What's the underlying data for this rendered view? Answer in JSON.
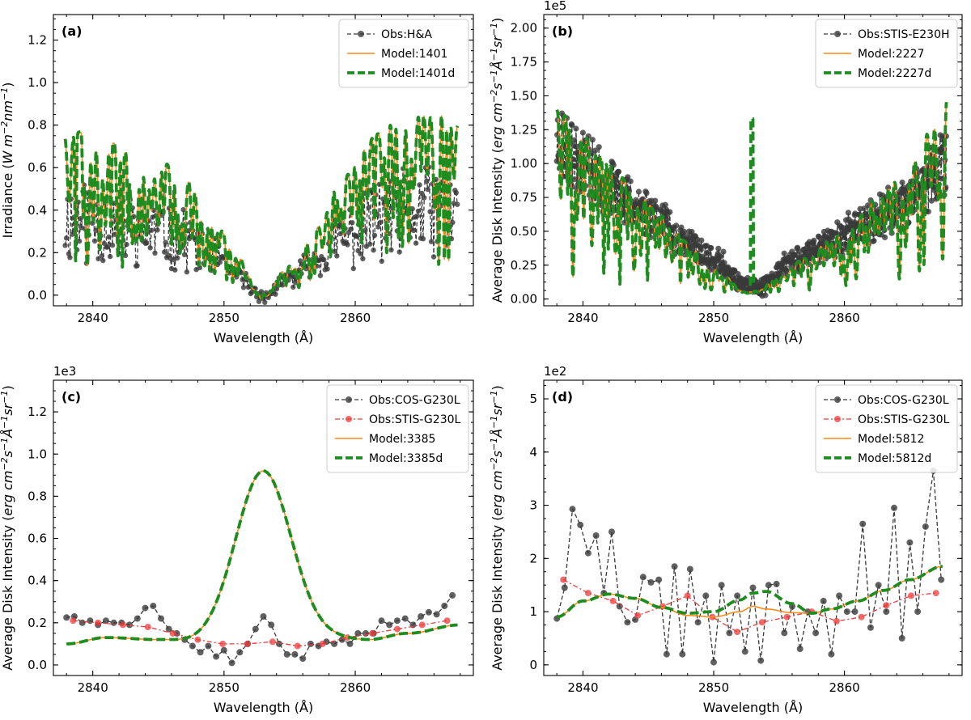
{
  "chart_data": [
    {
      "id": "a",
      "type": "line",
      "panel_label": "(a)",
      "xlabel": "Wavelength (Å)",
      "ylabel_main": "Irradiance (",
      "ylabel_units": "W m",
      "ylabel_exp1": "−2",
      "ylabel_mid": "nm",
      "ylabel_exp2": "−1",
      "ylabel_close": ")",
      "offset_text": "",
      "xlim": [
        2837,
        2869
      ],
      "ylim": [
        -0.05,
        1.32
      ],
      "xticks": [
        2840,
        2850,
        2860
      ],
      "xtick_labels": [
        "2840",
        "2850",
        "2860"
      ],
      "yticks": [
        0.0,
        0.2,
        0.4,
        0.6,
        0.8,
        1.0,
        1.2
      ],
      "ytick_labels": [
        "0.0",
        "0.2",
        "0.4",
        "0.6",
        "0.8",
        "1.0",
        "1.2"
      ],
      "legend": [
        {
          "label": "Obs:H&A",
          "style": "obs-black"
        },
        {
          "label": "Model:1401",
          "style": "model-orange"
        },
        {
          "label": "Model:1401d",
          "style": "model-green"
        }
      ]
    },
    {
      "id": "b",
      "type": "line",
      "panel_label": "(b)",
      "xlabel": "Wavelength (Å)",
      "ylabel_main": "Average Disk Intensity (",
      "ylabel_units": "erg cm",
      "ylabel_exp1": "−2",
      "ylabel_mid": "s",
      "ylabel_exp2": "−1",
      "ylabel_mid2": "Å",
      "ylabel_exp3": "−1",
      "ylabel_mid3": "sr",
      "ylabel_exp4": "−1",
      "ylabel_close": ")",
      "offset_text": "1e5",
      "xlim": [
        2837,
        2869
      ],
      "ylim": [
        -0.05,
        2.1
      ],
      "xticks": [
        2840,
        2850,
        2860
      ],
      "xtick_labels": [
        "2840",
        "2850",
        "2860"
      ],
      "yticks": [
        0.0,
        0.25,
        0.5,
        0.75,
        1.0,
        1.25,
        1.5,
        1.75,
        2.0
      ],
      "ytick_labels": [
        "0.00",
        "0.25",
        "0.50",
        "0.75",
        "1.00",
        "1.25",
        "1.50",
        "1.75",
        "2.00"
      ],
      "legend": [
        {
          "label": "Obs:STIS-E230H",
          "style": "obs-black"
        },
        {
          "label": "Model:2227",
          "style": "model-orange"
        },
        {
          "label": "Model:2227d",
          "style": "model-green"
        }
      ]
    },
    {
      "id": "c",
      "type": "line",
      "panel_label": "(c)",
      "xlabel": "Wavelength (Å)",
      "ylabel_main": "Average Disk Intensity (",
      "ylabel_units": "erg cm",
      "ylabel_exp1": "−2",
      "ylabel_mid": "s",
      "ylabel_exp2": "−1",
      "ylabel_mid2": "Å",
      "ylabel_exp3": "−1",
      "ylabel_mid3": "sr",
      "ylabel_exp4": "−1",
      "ylabel_close": ")",
      "offset_text": "1e3",
      "xlim": [
        2837,
        2869
      ],
      "ylim": [
        -0.05,
        1.35
      ],
      "xticks": [
        2840,
        2850,
        2860
      ],
      "xtick_labels": [
        "2840",
        "2850",
        "2860"
      ],
      "yticks": [
        0.0,
        0.2,
        0.4,
        0.6,
        0.8,
        1.0,
        1.2
      ],
      "ytick_labels": [
        "0.0",
        "0.2",
        "0.4",
        "0.6",
        "0.8",
        "1.0",
        "1.2"
      ],
      "legend": [
        {
          "label": "Obs:COS-G230L",
          "style": "obs-black"
        },
        {
          "label": "Obs:STIS-G230L",
          "style": "obs-red"
        },
        {
          "label": "Model:3385",
          "style": "model-orange"
        },
        {
          "label": "Model:3385d",
          "style": "model-green"
        }
      ],
      "series": [
        {
          "name": "Obs:COS-G230L",
          "style": "obs-black",
          "x": [
            2838,
            2838.6,
            2839.2,
            2839.8,
            2840.4,
            2841,
            2841.6,
            2842.2,
            2842.8,
            2843.4,
            2844,
            2844.6,
            2845.2,
            2845.8,
            2846.4,
            2847,
            2847.6,
            2848.2,
            2848.8,
            2849.4,
            2850,
            2850.6,
            2851.2,
            2851.8,
            2852.4,
            2853,
            2853.6,
            2854.2,
            2854.8,
            2855.4,
            2856,
            2856.6,
            2857.2,
            2857.8,
            2858.4,
            2859,
            2859.6,
            2860.2,
            2860.8,
            2861.4,
            2862,
            2862.6,
            2863.2,
            2863.8,
            2864.4,
            2865,
            2865.6,
            2866.2,
            2866.8,
            2867.4
          ],
          "y": [
            0.225,
            0.23,
            0.2,
            0.21,
            0.19,
            0.21,
            0.2,
            0.2,
            0.19,
            0.22,
            0.27,
            0.28,
            0.22,
            0.17,
            0.15,
            0.12,
            0.09,
            0.06,
            0.09,
            0.04,
            0.07,
            0.01,
            0.06,
            0.1,
            0.17,
            0.23,
            0.19,
            0.1,
            0.05,
            0.05,
            0.03,
            0.1,
            0.09,
            0.11,
            0.1,
            0.12,
            0.1,
            0.15,
            0.15,
            0.15,
            0.21,
            0.19,
            0.21,
            0.22,
            0.19,
            0.23,
            0.25,
            0.24,
            0.28,
            0.33
          ]
        },
        {
          "name": "Obs:STIS-G230L",
          "style": "obs-red",
          "x": [
            2838.5,
            2840.4,
            2842.3,
            2844.2,
            2846.1,
            2848,
            2849.9,
            2851.8,
            2853.7,
            2855.6,
            2857.5,
            2859.4,
            2861.3,
            2863.2,
            2865.1,
            2867
          ],
          "y": [
            0.21,
            0.2,
            0.19,
            0.18,
            0.15,
            0.12,
            0.1,
            0.1,
            0.11,
            0.09,
            0.1,
            0.13,
            0.15,
            0.17,
            0.19,
            0.21
          ]
        },
        {
          "name": "Model:3385",
          "style": "model-orange",
          "generator": "gauss",
          "base_x": [
            2838,
            2841,
            2845,
            2848,
            2853,
            2858,
            2861,
            2864,
            2868
          ],
          "base_y": [
            0.1,
            0.13,
            0.12,
            0.11,
            0.12,
            0.13,
            0.12,
            0.15,
            0.19
          ],
          "peak_center": 2853,
          "peak_height": 0.8,
          "peak_sigma": 2.1
        },
        {
          "name": "Model:3385d",
          "style": "model-green",
          "generator": "gauss",
          "base_x": [
            2838,
            2841,
            2845,
            2848,
            2853,
            2858,
            2861,
            2864,
            2868
          ],
          "base_y": [
            0.1,
            0.13,
            0.12,
            0.11,
            0.12,
            0.13,
            0.12,
            0.15,
            0.19
          ],
          "peak_center": 2853,
          "peak_height": 0.8,
          "peak_sigma": 2.1
        }
      ]
    },
    {
      "id": "d",
      "type": "line",
      "panel_label": "(d)",
      "xlabel": "Wavelength (Å)",
      "ylabel_main": "Average Disk Intensity (",
      "ylabel_units": "erg cm",
      "ylabel_exp1": "−2",
      "ylabel_mid": "s",
      "ylabel_exp2": "−1",
      "ylabel_mid2": "Å",
      "ylabel_exp3": "−1",
      "ylabel_mid3": "sr",
      "ylabel_exp4": "−1",
      "ylabel_close": ")",
      "offset_text": "1e2",
      "xlim": [
        2837,
        2869
      ],
      "ylim": [
        -0.2,
        5.35
      ],
      "xticks": [
        2840,
        2850,
        2860
      ],
      "xtick_labels": [
        "2840",
        "2850",
        "2860"
      ],
      "yticks": [
        0,
        1,
        2,
        3,
        4,
        5
      ],
      "ytick_labels": [
        "0",
        "1",
        "2",
        "3",
        "4",
        "5"
      ],
      "legend": [
        {
          "label": "Obs:COS-G230L",
          "style": "obs-black"
        },
        {
          "label": "Obs:STIS-G230L",
          "style": "obs-red"
        },
        {
          "label": "Model:5812",
          "style": "model-orange"
        },
        {
          "label": "Model:5812d",
          "style": "model-green"
        }
      ],
      "series": [
        {
          "name": "Obs:COS-G230L",
          "style": "obs-black",
          "x": [
            2838,
            2838.6,
            2839.2,
            2839.8,
            2840.4,
            2841,
            2841.6,
            2842.2,
            2842.8,
            2843.4,
            2844,
            2844.6,
            2845.2,
            2845.8,
            2846.4,
            2847,
            2847.6,
            2848.2,
            2848.8,
            2849.4,
            2850,
            2850.6,
            2851.2,
            2851.8,
            2852.4,
            2853,
            2853.6,
            2854.2,
            2854.8,
            2855.4,
            2856,
            2856.6,
            2857.2,
            2857.8,
            2858.4,
            2859,
            2859.6,
            2860.2,
            2860.8,
            2861.4,
            2862,
            2862.6,
            2863.2,
            2863.8,
            2864.4,
            2865,
            2865.6,
            2866.2,
            2866.8,
            2867.4
          ],
          "y": [
            0.87,
            1.45,
            2.93,
            2.63,
            2.1,
            2.43,
            1.35,
            2.5,
            1.1,
            0.8,
            0.85,
            1.65,
            1.55,
            1.6,
            0.2,
            1.85,
            0.2,
            1.8,
            0.8,
            1.3,
            0.05,
            1.5,
            0.6,
            1.3,
            0.25,
            1.45,
            0.08,
            1.5,
            1.52,
            0.6,
            1.1,
            0.3,
            1.0,
            0.6,
            1.2,
            0.2,
            1.3,
            1.0,
            1.0,
            2.65,
            0.7,
            1.5,
            1.0,
            2.95,
            0.5,
            2.3,
            1.0,
            2.6,
            3.65,
            1.6
          ]
        },
        {
          "name": "Obs:STIS-G230L",
          "style": "obs-red",
          "x": [
            2838.5,
            2840.4,
            2842.3,
            2844.2,
            2846.1,
            2848,
            2849.9,
            2851.8,
            2853.7,
            2855.6,
            2857.5,
            2859.4,
            2861.3,
            2863.2,
            2865.1,
            2867
          ],
          "y": [
            1.6,
            1.35,
            1.2,
            0.93,
            1.1,
            1.3,
            0.9,
            0.62,
            0.8,
            0.9,
            1.0,
            0.82,
            0.9,
            1.12,
            1.3,
            1.35
          ]
        },
        {
          "name": "Model:5812",
          "style": "model-orange",
          "x": [
            2838,
            2840,
            2842,
            2844,
            2846,
            2848,
            2850,
            2852,
            2853,
            2854,
            2856,
            2857.5,
            2859,
            2861,
            2863,
            2865,
            2867.5
          ],
          "y": [
            0.9,
            1.2,
            1.33,
            1.25,
            1.08,
            0.93,
            0.9,
            1.0,
            1.1,
            1.05,
            0.98,
            0.97,
            1.05,
            1.2,
            1.4,
            1.6,
            1.85
          ]
        },
        {
          "name": "Model:5812d",
          "style": "model-green",
          "x": [
            2838,
            2840,
            2842,
            2844,
            2846,
            2848,
            2850,
            2852,
            2853,
            2854,
            2856,
            2857.5,
            2859,
            2861,
            2863,
            2865,
            2867.5
          ],
          "y": [
            0.9,
            1.2,
            1.33,
            1.25,
            1.08,
            0.97,
            1.0,
            1.22,
            1.35,
            1.38,
            1.15,
            0.97,
            1.05,
            1.2,
            1.4,
            1.6,
            1.85
          ]
        }
      ]
    }
  ],
  "colors": {
    "obs_black": "#3a3a3a",
    "obs_red": "#ee3b3b",
    "model_orange": "#ff8c1a",
    "model_green": "#1f8c1f",
    "axis": "#000000",
    "legend_border": "#cccccc"
  }
}
